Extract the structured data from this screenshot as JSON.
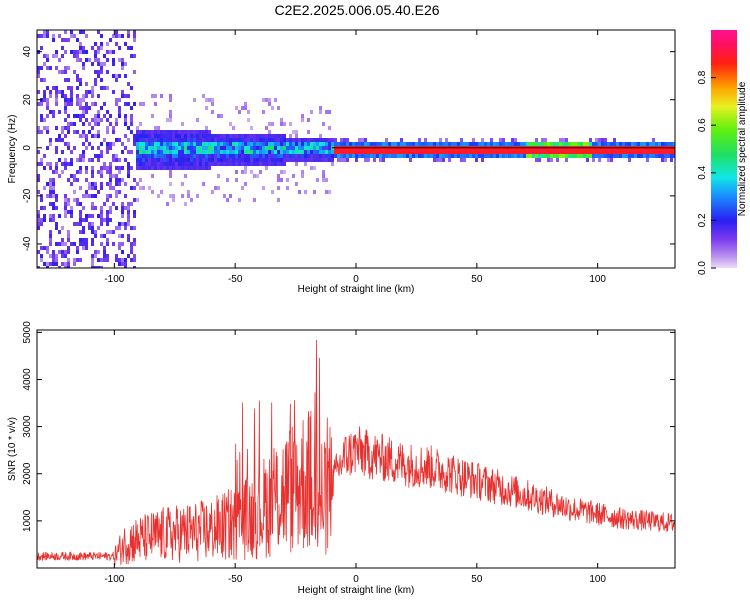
{
  "title": "C2E2.2025.006.05.40.E26",
  "chart_data": [
    {
      "type": "heatmap",
      "xlabel": "Height of straight line (km)",
      "ylabel": "Frequency (Hz)",
      "xlim": [
        -132,
        132
      ],
      "ylim": [
        -50,
        49
      ],
      "xticks": [
        -100,
        -50,
        0,
        50,
        100
      ],
      "xtick_labels": [
        "-100",
        "-50",
        "0",
        "50",
        "100"
      ],
      "yticks": [
        -40,
        -20,
        0,
        20,
        40
      ],
      "ytick_labels": [
        "-40",
        "-20",
        "0",
        "20",
        "40"
      ],
      "grid": false,
      "colorbar": {
        "label": "Normalized spectral amplitude",
        "range": [
          0,
          1
        ],
        "ticks": [
          0.0,
          0.2,
          0.4,
          0.6,
          0.8
        ],
        "tick_labels": [
          "0.0",
          "0.2",
          "0.4",
          "0.6",
          "0.8"
        ],
        "colormap": "rainbow (violet-blue-cyan-green-yellow-orange-red-magenta)"
      },
      "reference_line_hz": 0
    },
    {
      "type": "line",
      "xlabel": "Height of straight line (km)",
      "ylabel": "SNR (10 * v/v)",
      "xlim": [
        -132,
        132
      ],
      "ylim": [
        0,
        5050
      ],
      "xticks": [
        -100,
        -50,
        0,
        50,
        100
      ],
      "xtick_labels": [
        "-100",
        "-50",
        "0",
        "50",
        "100"
      ],
      "yticks": [
        1000,
        2000,
        3000,
        4000,
        5000
      ],
      "ytick_labels": [
        "1000",
        "2000",
        "3000",
        "4000",
        "5000"
      ],
      "grid": false,
      "series_color": "#e8302e",
      "envelope": {
        "x": [
          -132,
          -100,
          -95,
          -80,
          -70,
          -60,
          -50,
          -40,
          -35,
          -30,
          -25,
          -20,
          -17,
          -15,
          -12,
          -10,
          -5,
          0,
          5,
          10,
          20,
          30,
          40,
          50,
          60,
          70,
          80,
          90,
          100,
          110,
          120,
          132
        ],
        "y": [
          250,
          250,
          550,
          700,
          750,
          800,
          950,
          1200,
          1450,
          1600,
          1750,
          1900,
          1750,
          1400,
          1500,
          1800,
          2350,
          2500,
          2400,
          2350,
          2200,
          2150,
          2000,
          1850,
          1700,
          1550,
          1400,
          1250,
          1150,
          1050,
          1000,
          950
        ]
      }
    }
  ]
}
